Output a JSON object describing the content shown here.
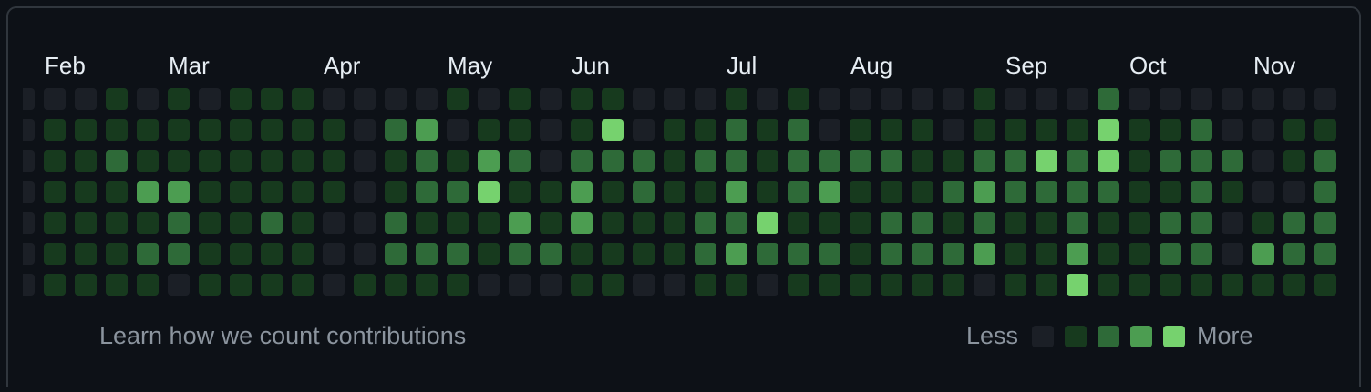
{
  "months": [
    "Feb",
    "Mar",
    "Apr",
    "May",
    "Jun",
    "Jul",
    "Aug",
    "Sep",
    "Oct",
    "Nov"
  ],
  "level_colors": [
    "#1b1f26",
    "#173a1e",
    "#2e6a38",
    "#4c9d51",
    "#76d26e"
  ],
  "grid": {
    "rows": [
      [
        0,
        0,
        0,
        1,
        0,
        1,
        0,
        1,
        1,
        1,
        0,
        0,
        0,
        0,
        1,
        0,
        1,
        0,
        1,
        1,
        0,
        0,
        0,
        1,
        0,
        1,
        0,
        0,
        0,
        0,
        0,
        1,
        0,
        0,
        0,
        2,
        0,
        0,
        0,
        0,
        0,
        0,
        0
      ],
      [
        0,
        1,
        1,
        1,
        1,
        1,
        1,
        1,
        1,
        1,
        1,
        0,
        2,
        3,
        0,
        1,
        1,
        0,
        1,
        4,
        0,
        1,
        1,
        2,
        1,
        2,
        0,
        1,
        1,
        1,
        0,
        1,
        1,
        1,
        1,
        4,
        1,
        1,
        2,
        0,
        0,
        1,
        1
      ],
      [
        0,
        1,
        1,
        2,
        1,
        1,
        1,
        1,
        1,
        1,
        1,
        0,
        1,
        2,
        1,
        3,
        2,
        0,
        2,
        2,
        2,
        1,
        2,
        2,
        1,
        2,
        2,
        2,
        2,
        1,
        1,
        2,
        2,
        4,
        2,
        4,
        1,
        2,
        2,
        2,
        0,
        1,
        2
      ],
      [
        0,
        1,
        1,
        1,
        3,
        3,
        1,
        1,
        1,
        1,
        1,
        0,
        1,
        2,
        2,
        4,
        1,
        1,
        3,
        1,
        2,
        1,
        1,
        3,
        1,
        2,
        3,
        1,
        1,
        1,
        2,
        3,
        2,
        2,
        2,
        2,
        1,
        1,
        2,
        1,
        0,
        0,
        2
      ],
      [
        0,
        1,
        1,
        1,
        1,
        2,
        1,
        1,
        2,
        1,
        0,
        0,
        2,
        1,
        1,
        1,
        3,
        1,
        3,
        1,
        1,
        1,
        2,
        2,
        4,
        1,
        1,
        1,
        2,
        2,
        1,
        2,
        1,
        1,
        2,
        1,
        1,
        2,
        2,
        0,
        1,
        2,
        2
      ],
      [
        0,
        1,
        1,
        1,
        2,
        2,
        1,
        1,
        1,
        1,
        0,
        0,
        2,
        2,
        2,
        1,
        2,
        2,
        1,
        1,
        1,
        1,
        2,
        3,
        2,
        2,
        2,
        1,
        2,
        2,
        2,
        3,
        1,
        1,
        3,
        1,
        1,
        2,
        2,
        0,
        3,
        2,
        2
      ],
      [
        0,
        1,
        1,
        1,
        1,
        0,
        1,
        1,
        1,
        1,
        0,
        1,
        1,
        1,
        1,
        0,
        0,
        0,
        1,
        1,
        0,
        0,
        1,
        1,
        0,
        1,
        1,
        1,
        1,
        1,
        1,
        0,
        1,
        1,
        4,
        1,
        1,
        1,
        1,
        1,
        1,
        1,
        1
      ]
    ]
  },
  "footer": {
    "link": "Learn how we count contributions",
    "less": "Less",
    "more": "More"
  }
}
